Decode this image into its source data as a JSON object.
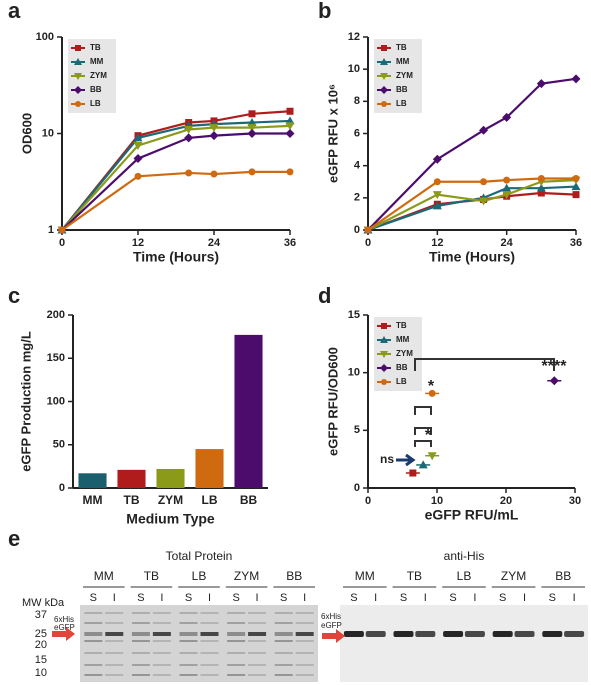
{
  "panel_labels": [
    "a",
    "b",
    "c",
    "d",
    "e"
  ],
  "chart_data": [
    {
      "type": "line",
      "xlabel": "Time (Hours)",
      "ylabel": "OD600",
      "ylog": true,
      "x": [
        0,
        12,
        20,
        24,
        30,
        36
      ],
      "xlim": [
        0,
        36
      ],
      "xticks": [
        0,
        12,
        24,
        36
      ],
      "ylim": [
        1,
        100
      ],
      "yticks": [
        1,
        10,
        100
      ],
      "series": [
        {
          "name": "TB",
          "color": "#b01c1c",
          "marker": "square",
          "values": [
            1,
            9.5,
            13,
            13.5,
            16,
            17
          ]
        },
        {
          "name": "MM",
          "color": "#1b6a78",
          "marker": "triangle",
          "values": [
            1,
            9,
            12,
            12.5,
            13,
            13.5
          ]
        },
        {
          "name": "ZYM",
          "color": "#8c9a1a",
          "marker": "triangle-down",
          "values": [
            1,
            7.5,
            11,
            11.5,
            11.5,
            12
          ]
        },
        {
          "name": "BB",
          "color": "#4b0c6b",
          "marker": "diamond",
          "values": [
            1,
            5.5,
            9,
            9.5,
            10,
            10
          ]
        },
        {
          "name": "LB",
          "color": "#d06a10",
          "marker": "circle",
          "values": [
            1,
            3.6,
            3.9,
            3.8,
            4,
            4
          ]
        }
      ]
    },
    {
      "type": "line",
      "xlabel": "Time (Hours)",
      "ylabel": "eGFP RFU x 10⁶",
      "ylog": false,
      "x": [
        0,
        12,
        20,
        24,
        30,
        36
      ],
      "xlim": [
        0,
        36
      ],
      "xticks": [
        0,
        12,
        24,
        36
      ],
      "ylim": [
        0,
        12
      ],
      "yticks": [
        0,
        2,
        4,
        6,
        8,
        10,
        12
      ],
      "series": [
        {
          "name": "TB",
          "color": "#b01c1c",
          "marker": "square",
          "values": [
            0,
            1.6,
            1.9,
            2.1,
            2.3,
            2.2
          ]
        },
        {
          "name": "MM",
          "color": "#1b6a78",
          "marker": "triangle",
          "values": [
            0,
            1.5,
            2.0,
            2.6,
            2.6,
            2.7
          ]
        },
        {
          "name": "ZYM",
          "color": "#8c9a1a",
          "marker": "triangle-down",
          "values": [
            0,
            2.2,
            1.8,
            2.2,
            3.0,
            3.1
          ]
        },
        {
          "name": "BB",
          "color": "#4b0c6b",
          "marker": "diamond",
          "values": [
            0,
            4.4,
            6.2,
            7,
            9.1,
            9.4
          ]
        },
        {
          "name": "LB",
          "color": "#d06a10",
          "marker": "circle",
          "values": [
            0,
            3.0,
            3.0,
            3.1,
            3.2,
            3.2
          ]
        }
      ]
    },
    {
      "type": "bar",
      "xlabel": "Medium Type",
      "ylabel": "eGFP Production mg/L",
      "categories": [
        "MM",
        "TB",
        "ZYM",
        "LB",
        "BB"
      ],
      "values": [
        17,
        21,
        22,
        45,
        177
      ],
      "colors": [
        "#1b5e6e",
        "#b01c1c",
        "#8c9a1a",
        "#d06a10",
        "#4b0c6b"
      ],
      "ylim": [
        0,
        200
      ],
      "yticks": [
        0,
        50,
        100,
        150,
        200
      ]
    },
    {
      "type": "scatter",
      "xlabel": "eGFP RFU/mL",
      "ylabel": "eGFP RFU/OD600",
      "xlim": [
        0,
        30
      ],
      "xticks": [
        0,
        10,
        20,
        30
      ],
      "ylim": [
        0,
        15
      ],
      "yticks": [
        0,
        5,
        10,
        15
      ],
      "series": [
        {
          "name": "TB",
          "color": "#b01c1c",
          "marker": "square",
          "x": [
            6.5
          ],
          "values": [
            1.3
          ]
        },
        {
          "name": "MM",
          "color": "#1b6a78",
          "marker": "triangle",
          "x": [
            8
          ],
          "values": [
            2.0
          ]
        },
        {
          "name": "ZYM",
          "color": "#8c9a1a",
          "marker": "triangle-down",
          "x": [
            9.3
          ],
          "values": [
            2.8
          ]
        },
        {
          "name": "BB",
          "color": "#4b0c6b",
          "marker": "diamond",
          "x": [
            27
          ],
          "values": [
            9.3
          ]
        },
        {
          "name": "LB",
          "color": "#d06a10",
          "marker": "circle",
          "x": [
            9.3
          ],
          "values": [
            8.2
          ]
        }
      ],
      "annotations": [
        {
          "text": "ns"
        },
        {
          "text": "*"
        },
        {
          "text": "*"
        },
        {
          "text": "****"
        }
      ]
    }
  ],
  "gel": {
    "panels": [
      {
        "title": "Total Protein",
        "lanes": [
          "MM",
          "TB",
          "LB",
          "ZYM",
          "BB"
        ]
      },
      {
        "title": "anti-His",
        "lanes": [
          "MM",
          "TB",
          "LB",
          "ZYM",
          "BB"
        ]
      }
    ],
    "sublanes": [
      "S",
      "I"
    ],
    "mw_label": "MW kDa",
    "mw_markers": [
      "37",
      "25",
      "20",
      "15",
      "10"
    ],
    "tag_label": [
      "6xHis",
      "eGFP"
    ]
  }
}
